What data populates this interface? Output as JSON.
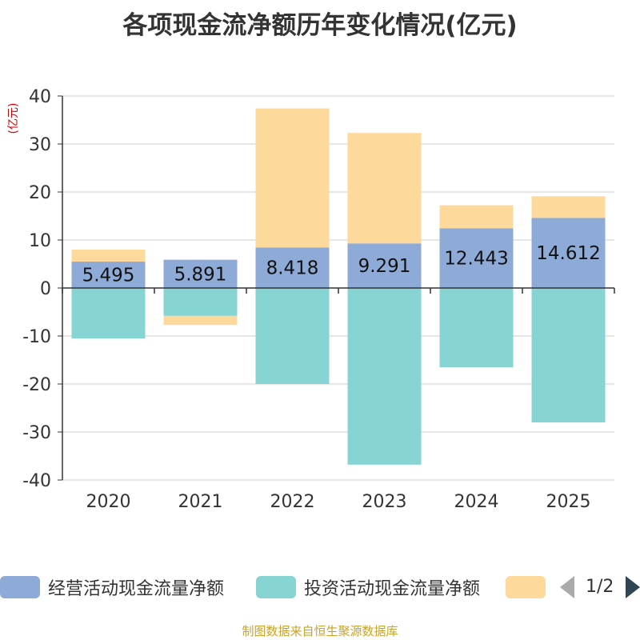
{
  "chart_data": {
    "type": "bar",
    "stacked": true,
    "title": "各项现金流净额历年变化情况(亿元)",
    "ylabel": "(亿元)",
    "xlabel": "",
    "ylim": [
      -40,
      40
    ],
    "yticks": [
      40,
      30,
      20,
      10,
      0,
      -10,
      -20,
      -30,
      -40
    ],
    "ytick_labels": [
      "40",
      "30",
      "20",
      "10",
      "0",
      "-10",
      "-20",
      "-30",
      "-40"
    ],
    "categories": [
      "2020",
      "2021",
      "2022",
      "2023",
      "2024",
      "2025"
    ],
    "grid": true,
    "legend_position": "bottom",
    "series": [
      {
        "name": "经营活动现金流量净额",
        "color": "#8eabd8",
        "values": [
          5.495,
          5.891,
          8.418,
          9.291,
          12.443,
          14.612
        ],
        "data_labels": [
          "5.495",
          "5.891",
          "8.418",
          "9.291",
          "12.443",
          "14.612"
        ]
      },
      {
        "name": "投资活动现金流量净额",
        "color": "#87d4d5",
        "values": [
          -10.5,
          -5.8,
          -20.0,
          -36.8,
          -16.5,
          -28.0
        ]
      },
      {
        "name": "",
        "color": "#fdd99b",
        "values": [
          2.5,
          -1.9,
          29.0,
          23.0,
          4.8,
          4.5
        ]
      }
    ]
  },
  "legend": {
    "items": [
      {
        "label": "经营活动现金流量净额",
        "color": "#8eabd8"
      },
      {
        "label": "投资活动现金流量净额",
        "color": "#87d4d5"
      },
      {
        "label": "",
        "color": "#fdd99b"
      }
    ],
    "pager": "1/2"
  },
  "footer": "制图数据来自恒生聚源数据库",
  "colors": {
    "axis": "#333333",
    "grid": "#cccccc",
    "unit_label": "#cc0000",
    "footer": "#c9a227"
  }
}
